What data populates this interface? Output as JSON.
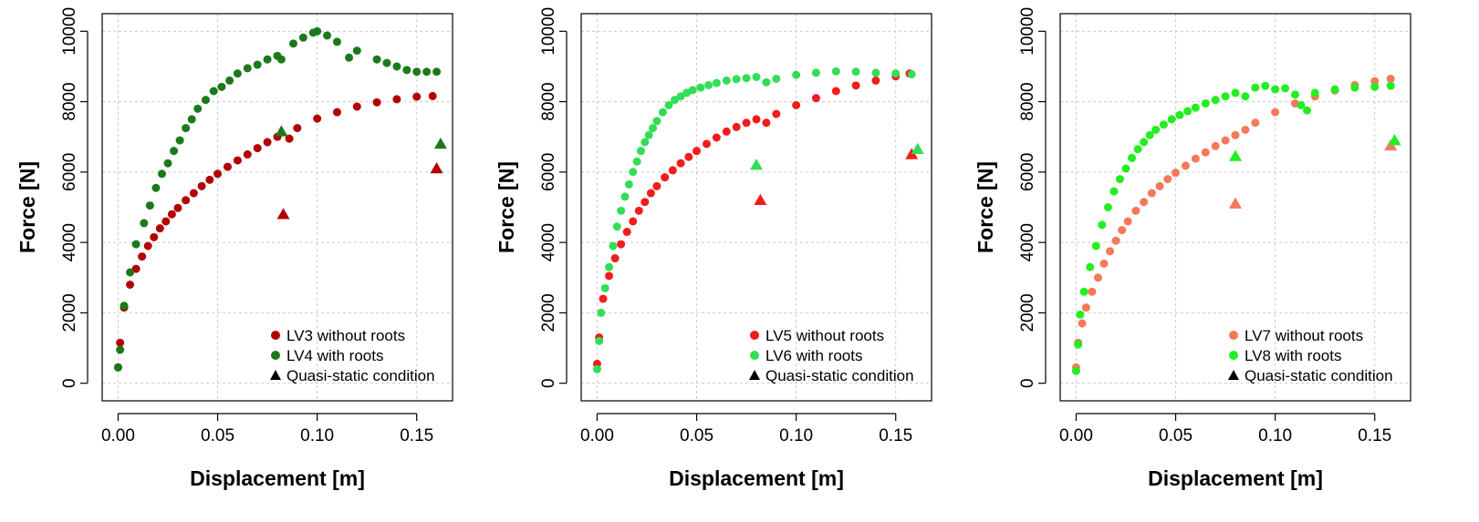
{
  "colors": {
    "dark_red": "#b30000",
    "dark_green": "#1a7a1a",
    "red": "#f21c1c",
    "mint_green": "#33dd55",
    "salmon": "#f5785a",
    "lime": "#22ee22",
    "grid": "#cccccc",
    "axis": "#000000"
  },
  "chart_data": [
    {
      "type": "scatter",
      "title": "",
      "xlabel": "Displacement [m]",
      "ylabel": "Force [N]",
      "xlim": [
        -0.008,
        0.168
      ],
      "ylim": [
        -500,
        10500
      ],
      "xticks": [
        0.0,
        0.05,
        0.1,
        0.15
      ],
      "xtick_labels": [
        "0.00",
        "0.05",
        "0.10",
        "0.15"
      ],
      "yticks": [
        0,
        2000,
        4000,
        6000,
        8000,
        10000
      ],
      "ytick_labels": [
        "0",
        "2000",
        "4000",
        "6000",
        "8000",
        "10000"
      ],
      "grid": true,
      "legend_position": "bottom-right",
      "series": [
        {
          "name": "LV3 without roots",
          "marker": "circle",
          "color_key": "dark_red",
          "x": [
            0.0,
            0.001,
            0.003,
            0.006,
            0.009,
            0.012,
            0.015,
            0.018,
            0.021,
            0.024,
            0.027,
            0.03,
            0.034,
            0.038,
            0.042,
            0.046,
            0.05,
            0.055,
            0.06,
            0.065,
            0.07,
            0.075,
            0.08,
            0.086,
            0.09,
            0.1,
            0.11,
            0.12,
            0.13,
            0.14,
            0.15,
            0.158
          ],
          "y": [
            450,
            1150,
            2150,
            2800,
            3250,
            3600,
            3900,
            4150,
            4400,
            4600,
            4800,
            4980,
            5200,
            5400,
            5600,
            5780,
            5950,
            6150,
            6330,
            6500,
            6680,
            6850,
            7000,
            6950,
            7250,
            7520,
            7700,
            7860,
            7980,
            8070,
            8140,
            8160
          ]
        },
        {
          "name": "LV4 with roots",
          "marker": "circle",
          "color_key": "dark_green",
          "x": [
            0.0,
            0.001,
            0.003,
            0.006,
            0.009,
            0.013,
            0.016,
            0.019,
            0.022,
            0.025,
            0.028,
            0.031,
            0.034,
            0.037,
            0.04,
            0.044,
            0.048,
            0.052,
            0.056,
            0.06,
            0.065,
            0.07,
            0.075,
            0.08,
            0.082,
            0.088,
            0.093,
            0.098,
            0.1,
            0.105,
            0.11,
            0.116,
            0.12,
            0.13,
            0.135,
            0.14,
            0.145,
            0.15,
            0.155,
            0.16
          ],
          "y": [
            450,
            950,
            2200,
            3150,
            3950,
            4550,
            5050,
            5550,
            5950,
            6250,
            6600,
            6900,
            7250,
            7500,
            7800,
            8050,
            8300,
            8420,
            8600,
            8800,
            8950,
            9050,
            9200,
            9300,
            9200,
            9650,
            9820,
            9960,
            10000,
            9880,
            9700,
            9250,
            9450,
            9200,
            9100,
            9000,
            8900,
            8850,
            8850,
            8850
          ]
        },
        {
          "name": "Quasi-static condition",
          "marker": "triangle",
          "color_key": "dark_red",
          "x": [
            0.083,
            0.16
          ],
          "y": [
            4800,
            6100
          ]
        },
        {
          "name": "",
          "marker": "triangle",
          "color_key": "dark_green",
          "x": [
            0.082,
            0.162
          ],
          "y": [
            7150,
            6800
          ]
        }
      ]
    },
    {
      "type": "scatter",
      "title": "",
      "xlabel": "Displacement [m]",
      "ylabel": "Force [N]",
      "xlim": [
        -0.008,
        0.168
      ],
      "ylim": [
        -500,
        10500
      ],
      "xticks": [
        0.0,
        0.05,
        0.1,
        0.15
      ],
      "xtick_labels": [
        "0.00",
        "0.05",
        "0.10",
        "0.15"
      ],
      "yticks": [
        0,
        2000,
        4000,
        6000,
        8000,
        10000
      ],
      "ytick_labels": [
        "0",
        "2000",
        "4000",
        "6000",
        "8000",
        "10000"
      ],
      "grid": true,
      "legend_position": "bottom-right",
      "series": [
        {
          "name": "LV5 without roots",
          "marker": "circle",
          "color_key": "red",
          "x": [
            0.0,
            0.001,
            0.003,
            0.006,
            0.009,
            0.012,
            0.015,
            0.018,
            0.021,
            0.024,
            0.027,
            0.03,
            0.034,
            0.038,
            0.042,
            0.046,
            0.05,
            0.055,
            0.06,
            0.065,
            0.07,
            0.075,
            0.08,
            0.085,
            0.09,
            0.1,
            0.11,
            0.12,
            0.13,
            0.14,
            0.15,
            0.157
          ],
          "y": [
            550,
            1300,
            2400,
            3050,
            3550,
            3950,
            4300,
            4600,
            4900,
            5150,
            5400,
            5600,
            5850,
            6050,
            6250,
            6430,
            6600,
            6800,
            6980,
            7150,
            7280,
            7400,
            7500,
            7400,
            7650,
            7900,
            8100,
            8300,
            8460,
            8600,
            8720,
            8800
          ]
        },
        {
          "name": "LV6 with roots",
          "marker": "circle",
          "color_key": "mint_green",
          "x": [
            0.0,
            0.001,
            0.002,
            0.004,
            0.006,
            0.008,
            0.01,
            0.012,
            0.014,
            0.016,
            0.018,
            0.02,
            0.022,
            0.024,
            0.026,
            0.028,
            0.03,
            0.033,
            0.036,
            0.039,
            0.042,
            0.045,
            0.048,
            0.052,
            0.056,
            0.06,
            0.065,
            0.07,
            0.075,
            0.08,
            0.085,
            0.09,
            0.1,
            0.11,
            0.12,
            0.13,
            0.14,
            0.15,
            0.158
          ],
          "y": [
            400,
            1200,
            2000,
            2700,
            3300,
            3900,
            4450,
            4900,
            5300,
            5650,
            6000,
            6300,
            6600,
            6850,
            7050,
            7250,
            7450,
            7700,
            7900,
            8050,
            8150,
            8250,
            8330,
            8400,
            8470,
            8530,
            8600,
            8640,
            8670,
            8700,
            8550,
            8650,
            8760,
            8820,
            8860,
            8850,
            8820,
            8800,
            8780
          ]
        },
        {
          "name": "Quasi-static condition",
          "marker": "triangle",
          "color_key": "red",
          "x": [
            0.082,
            0.158
          ],
          "y": [
            5200,
            6500
          ]
        },
        {
          "name": "",
          "marker": "triangle",
          "color_key": "mint_green",
          "x": [
            0.08,
            0.161
          ],
          "y": [
            6200,
            6650
          ]
        }
      ]
    },
    {
      "type": "scatter",
      "title": "",
      "xlabel": "Displacement [m]",
      "ylabel": "Force [N]",
      "xlim": [
        -0.008,
        0.168
      ],
      "ylim": [
        -500,
        10500
      ],
      "xticks": [
        0.0,
        0.05,
        0.1,
        0.15
      ],
      "xtick_labels": [
        "0.00",
        "0.05",
        "0.10",
        "0.15"
      ],
      "yticks": [
        0,
        2000,
        4000,
        6000,
        8000,
        10000
      ],
      "ytick_labels": [
        "0",
        "2000",
        "4000",
        "6000",
        "8000",
        "10000"
      ],
      "grid": true,
      "legend_position": "bottom-right",
      "series": [
        {
          "name": "LV7 without roots",
          "marker": "circle",
          "color_key": "salmon",
          "x": [
            0.0,
            0.001,
            0.003,
            0.005,
            0.008,
            0.011,
            0.014,
            0.017,
            0.02,
            0.023,
            0.026,
            0.03,
            0.034,
            0.038,
            0.042,
            0.046,
            0.05,
            0.055,
            0.06,
            0.065,
            0.07,
            0.075,
            0.08,
            0.085,
            0.09,
            0.1,
            0.11,
            0.12,
            0.13,
            0.14,
            0.15,
            0.158
          ],
          "y": [
            450,
            1150,
            1700,
            2150,
            2600,
            3000,
            3400,
            3750,
            4050,
            4350,
            4600,
            4900,
            5150,
            5400,
            5600,
            5800,
            5980,
            6180,
            6380,
            6560,
            6740,
            6900,
            7050,
            7200,
            7400,
            7700,
            7950,
            8150,
            8320,
            8470,
            8580,
            8650
          ]
        },
        {
          "name": "LV8 with roots",
          "marker": "circle",
          "color_key": "lime",
          "x": [
            0.0,
            0.001,
            0.002,
            0.004,
            0.007,
            0.01,
            0.013,
            0.016,
            0.019,
            0.022,
            0.025,
            0.028,
            0.031,
            0.034,
            0.037,
            0.04,
            0.044,
            0.048,
            0.052,
            0.056,
            0.06,
            0.065,
            0.07,
            0.075,
            0.08,
            0.085,
            0.09,
            0.095,
            0.1,
            0.105,
            0.11,
            0.113,
            0.116,
            0.12,
            0.13,
            0.14,
            0.15,
            0.158
          ],
          "y": [
            350,
            1100,
            1950,
            2600,
            3300,
            3900,
            4500,
            5000,
            5450,
            5800,
            6100,
            6400,
            6650,
            6850,
            7050,
            7200,
            7350,
            7500,
            7620,
            7730,
            7830,
            7950,
            8050,
            8150,
            8250,
            8150,
            8400,
            8450,
            8350,
            8380,
            8200,
            7900,
            7750,
            8250,
            8350,
            8400,
            8420,
            8450
          ]
        },
        {
          "name": "Quasi-static condition",
          "marker": "triangle",
          "color_key": "salmon",
          "x": [
            0.08,
            0.158
          ],
          "y": [
            5100,
            6750
          ]
        },
        {
          "name": "",
          "marker": "triangle",
          "color_key": "lime",
          "x": [
            0.08,
            0.16
          ],
          "y": [
            6450,
            6900
          ]
        }
      ]
    }
  ]
}
